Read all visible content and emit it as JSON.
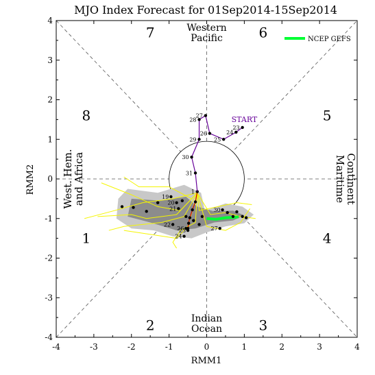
{
  "chart_data": {
    "type": "scatter",
    "title": "MJO Index Forecast for 01Sep2014-15Sep2014",
    "xlabel": "RMM1",
    "ylabel": "RMM2",
    "xlim": [
      -4,
      4
    ],
    "ylim": [
      -4,
      4
    ],
    "xticks": [
      "-4",
      "-3",
      "-2",
      "-1",
      "0",
      "1",
      "2",
      "3",
      "4"
    ],
    "yticks": [
      "-4",
      "-3",
      "-2",
      "-1",
      "0",
      "1",
      "2",
      "3",
      "4"
    ],
    "phases": [
      {
        "label": "1",
        "x": -3.2,
        "y": -1.5
      },
      {
        "label": "2",
        "x": -1.5,
        "y": -3.7
      },
      {
        "label": "3",
        "x": 1.5,
        "y": -3.7
      },
      {
        "label": "4",
        "x": 3.2,
        "y": -1.5
      },
      {
        "label": "5",
        "x": 3.2,
        "y": 1.6
      },
      {
        "label": "6",
        "x": 1.5,
        "y": 3.7
      },
      {
        "label": "7",
        "x": -1.5,
        "y": 3.7
      },
      {
        "label": "8",
        "x": -3.2,
        "y": 1.6
      }
    ],
    "regions": {
      "top": [
        "Western",
        "Pacific"
      ],
      "bottom": [
        "Indian",
        "Ocean"
      ],
      "left": [
        "West. Hem.",
        "and Africa"
      ],
      "right": [
        "Maritime",
        "Continent"
      ]
    },
    "start_label": "START",
    "legend": {
      "entry": "NCEP GEFS",
      "color": "#00ff33",
      "placement": "top-right"
    },
    "observed": {
      "color": "#660099",
      "points": [
        {
          "label": "23",
          "x": 0.95,
          "y": 1.3
        },
        {
          "label": "24",
          "x": 0.78,
          "y": 1.18
        },
        {
          "label": "25",
          "x": 0.45,
          "y": 1.0
        },
        {
          "label": "26",
          "x": 0.08,
          "y": 1.15
        },
        {
          "label": "27",
          "x": -0.03,
          "y": 1.6
        },
        {
          "label": "28",
          "x": -0.2,
          "y": 1.5
        },
        {
          "label": "29",
          "x": -0.2,
          "y": 1.0
        },
        {
          "label": "30",
          "x": -0.4,
          "y": 0.55
        },
        {
          "label": "31",
          "x": -0.3,
          "y": 0.15
        }
      ]
    },
    "forecast_mean": {
      "color": "#cc0000",
      "points": [
        {
          "label": "1",
          "x": -0.25,
          "y": -0.32
        },
        {
          "label": "",
          "x": -0.3,
          "y": -0.58
        },
        {
          "label": "",
          "x": -0.38,
          "y": -0.78
        },
        {
          "label": "",
          "x": -0.45,
          "y": -0.98
        },
        {
          "label": "",
          "x": -0.48,
          "y": -1.12
        },
        {
          "label": "",
          "x": -0.5,
          "y": -1.25
        }
      ]
    },
    "gefs_mean": {
      "color": "#00ff33",
      "points": [
        {
          "x": 0.0,
          "y": -1.0
        },
        {
          "x": 0.25,
          "y": -1.02
        },
        {
          "x": 0.5,
          "y": -0.98
        },
        {
          "x": 0.72,
          "y": -0.97
        },
        {
          "x": 0.85,
          "y": -0.96
        }
      ]
    },
    "ensemble_points": [
      {
        "label": "19",
        "x": -0.95,
        "y": -0.45
      },
      {
        "label": "20",
        "x": -0.8,
        "y": -0.6
      },
      {
        "label": "21",
        "x": -0.75,
        "y": -0.75
      },
      {
        "label": "22",
        "x": -0.9,
        "y": -1.15
      },
      {
        "label": "23",
        "x": -0.5,
        "y": -1.3
      },
      {
        "label": "24",
        "x": -0.6,
        "y": -1.45
      },
      {
        "label": "26",
        "x": -0.55,
        "y": -1.25
      },
      {
        "label": "27",
        "x": 0.35,
        "y": -1.25
      },
      {
        "label": "30",
        "x": 0.42,
        "y": -0.78
      },
      {
        "label": "",
        "x": -2.25,
        "y": -0.7
      },
      {
        "label": "",
        "x": -1.95,
        "y": -0.72
      },
      {
        "label": "",
        "x": -1.6,
        "y": -0.82
      },
      {
        "label": "",
        "x": -1.3,
        "y": -0.6
      },
      {
        "label": "",
        "x": -0.65,
        "y": -0.55
      },
      {
        "label": "",
        "x": -0.55,
        "y": -0.95
      },
      {
        "label": "",
        "x": -0.35,
        "y": -1.05
      },
      {
        "label": "",
        "x": -0.2,
        "y": -1.15
      },
      {
        "label": "",
        "x": -0.12,
        "y": -0.95
      },
      {
        "label": "",
        "x": 0.55,
        "y": -0.85
      },
      {
        "label": "",
        "x": 0.7,
        "y": -0.95
      },
      {
        "label": "",
        "x": 0.8,
        "y": -0.83
      },
      {
        "label": "",
        "x": 0.95,
        "y": -0.95
      },
      {
        "label": "",
        "x": 1.05,
        "y": -0.98
      }
    ],
    "ensemble_members": [
      [
        [
          -0.25,
          -0.35
        ],
        [
          -0.9,
          -0.5
        ],
        [
          -1.7,
          -0.6
        ],
        [
          -2.45,
          -0.8
        ],
        [
          -3.25,
          -1.0
        ]
      ],
      [
        [
          -0.25,
          -0.35
        ],
        [
          -0.7,
          -0.8
        ],
        [
          -1.3,
          -0.7
        ],
        [
          -2.0,
          -0.4
        ],
        [
          -2.8,
          -0.1
        ]
      ],
      [
        [
          -0.25,
          -0.35
        ],
        [
          -0.6,
          -0.95
        ],
        [
          -1.2,
          -1.1
        ],
        [
          -2.2,
          -1.2
        ],
        [
          -2.6,
          -1.3
        ]
      ],
      [
        [
          -0.25,
          -0.35
        ],
        [
          -0.5,
          -1.2
        ],
        [
          -0.8,
          -1.5
        ],
        [
          -1.5,
          -1.4
        ],
        [
          -2.2,
          -1.3
        ]
      ],
      [
        [
          -0.25,
          -0.35
        ],
        [
          -0.3,
          -1.1
        ],
        [
          -0.7,
          -1.3
        ],
        [
          -0.9,
          -1.6
        ],
        [
          -0.8,
          -1.75
        ]
      ],
      [
        [
          -0.25,
          -0.35
        ],
        [
          0.1,
          -0.9
        ],
        [
          0.5,
          -0.85
        ],
        [
          0.9,
          -0.95
        ],
        [
          1.3,
          -1.0
        ]
      ],
      [
        [
          -0.25,
          -0.35
        ],
        [
          0.0,
          -1.2
        ],
        [
          0.5,
          -1.3
        ],
        [
          0.9,
          -1.1
        ],
        [
          1.15,
          -0.75
        ]
      ],
      [
        [
          -0.25,
          -0.35
        ],
        [
          -0.4,
          -0.5
        ],
        [
          -1.0,
          -0.2
        ],
        [
          -1.8,
          -0.2
        ],
        [
          -2.2,
          0.05
        ]
      ],
      [
        [
          -0.25,
          -0.35
        ],
        [
          -0.2,
          -0.8
        ],
        [
          0.3,
          -0.7
        ],
        [
          0.8,
          -0.6
        ],
        [
          1.2,
          -0.65
        ]
      ],
      [
        [
          -0.25,
          -0.35
        ],
        [
          -0.8,
          -0.9
        ],
        [
          -1.6,
          -1.0
        ],
        [
          -2.0,
          -0.9
        ],
        [
          -2.9,
          -0.95
        ]
      ]
    ],
    "spread_outer": [
      [
        -2.1,
        -0.25
      ],
      [
        -1.3,
        -0.35
      ],
      [
        -0.6,
        -0.15
      ],
      [
        -0.15,
        -0.35
      ],
      [
        -0.05,
        -0.8
      ],
      [
        0.2,
        -0.72
      ],
      [
        0.5,
        -0.62
      ],
      [
        0.95,
        -0.7
      ],
      [
        1.25,
        -0.9
      ],
      [
        1.0,
        -1.12
      ],
      [
        0.5,
        -1.2
      ],
      [
        0.0,
        -1.35
      ],
      [
        -0.4,
        -1.5
      ],
      [
        -0.9,
        -1.45
      ],
      [
        -1.4,
        -1.3
      ],
      [
        -2.0,
        -1.25
      ],
      [
        -2.4,
        -1.0
      ],
      [
        -2.35,
        -0.5
      ]
    ],
    "spread_inner": [
      [
        -2.0,
        -0.5
      ],
      [
        -1.2,
        -0.55
      ],
      [
        -0.55,
        -0.45
      ],
      [
        -0.25,
        -0.7
      ],
      [
        0.2,
        -0.82
      ],
      [
        0.7,
        -0.8
      ],
      [
        1.0,
        -0.92
      ],
      [
        0.7,
        -1.05
      ],
      [
        0.2,
        -1.1
      ],
      [
        -0.3,
        -1.25
      ],
      [
        -0.8,
        -1.3
      ],
      [
        -1.5,
        -1.1
      ],
      [
        -2.1,
        -0.95
      ]
    ]
  }
}
